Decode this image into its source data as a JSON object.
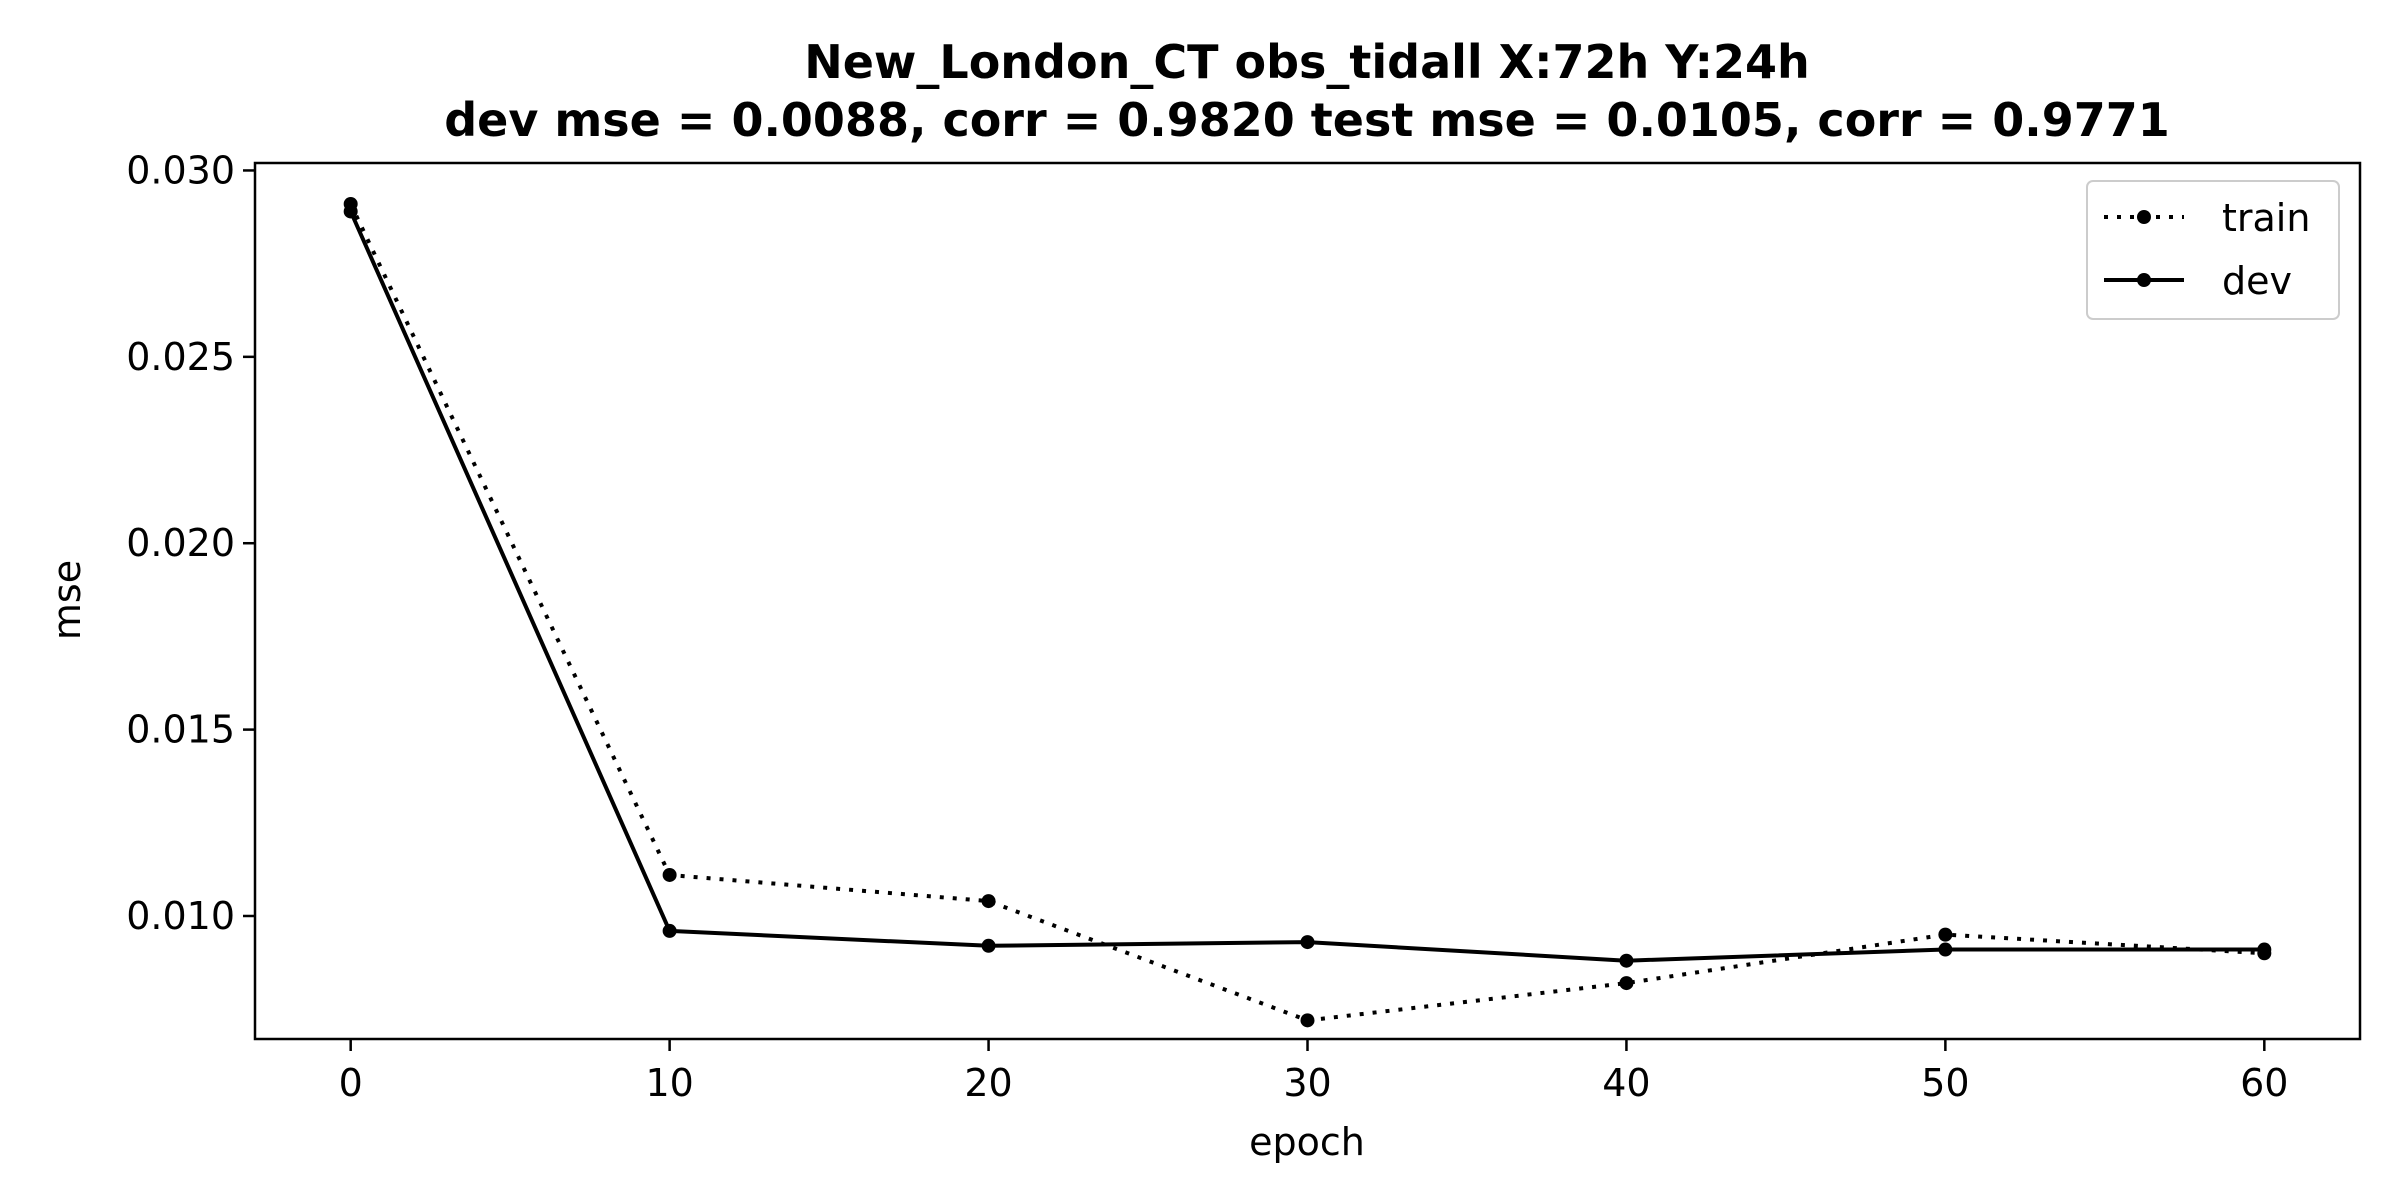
{
  "chart_data": {
    "type": "line",
    "title_line1": "New_London_CT   obs_tidall   X:72h   Y:24h",
    "title_line2": "dev mse = 0.0088, corr = 0.9820   test mse = 0.0105, corr = 0.9771",
    "xlabel": "epoch",
    "ylabel": "mse",
    "x": [
      0,
      10,
      20,
      30,
      40,
      50,
      60
    ],
    "xlim": [
      -3,
      63
    ],
    "ylim": [
      0.0067,
      0.0302
    ],
    "xticks": [
      0,
      10,
      20,
      30,
      40,
      50,
      60
    ],
    "xtick_labels": [
      "0",
      "10",
      "20",
      "30",
      "40",
      "50",
      "60"
    ],
    "yticks": [
      0.01,
      0.015,
      0.02,
      0.025,
      0.03
    ],
    "ytick_labels": [
      "0.010",
      "0.015",
      "0.020",
      "0.025",
      "0.030"
    ],
    "grid": false,
    "legend_position": "upper right",
    "series": [
      {
        "name": "train",
        "style": "dotted",
        "color": "#000000",
        "values": [
          0.0291,
          0.0111,
          0.0104,
          0.0072,
          0.0082,
          0.0095,
          0.009
        ]
      },
      {
        "name": "dev",
        "style": "solid",
        "color": "#000000",
        "values": [
          0.0289,
          0.0096,
          0.0092,
          0.0093,
          0.0088,
          0.0091,
          0.0091
        ]
      }
    ]
  }
}
